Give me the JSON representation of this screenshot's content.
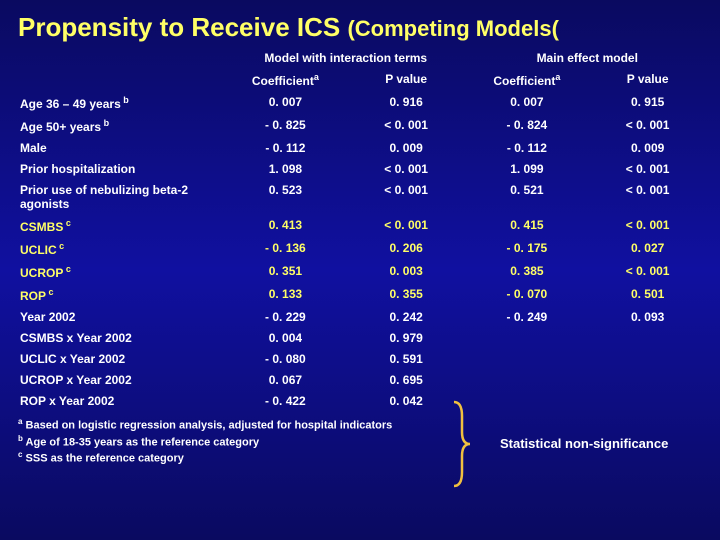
{
  "title_main": "Propensity to Receive ICS",
  "title_sub": "(Competing Models(",
  "header_group1": "Model with interaction terms",
  "header_group2": "Main effect model",
  "header_coef": "Coefficient",
  "header_sup_a": "a",
  "header_pval": "P value",
  "rows": [
    {
      "label": "Age 36 – 49 years",
      "sup": "b",
      "c1": "0. 007",
      "p1": "0. 916",
      "c2": "0. 007",
      "p2": "0. 915"
    },
    {
      "label": "Age 50+ years",
      "sup": "b",
      "c1": "- 0. 825",
      "p1": "< 0. 001",
      "c2": "- 0. 824",
      "p2": "< 0. 001"
    },
    {
      "label": "Male",
      "sup": "",
      "c1": "- 0. 112",
      "p1": "0. 009",
      "c2": "- 0. 112",
      "p2": "0. 009"
    },
    {
      "label": "Prior hospitalization",
      "sup": "",
      "c1": "1. 098",
      "p1": "< 0. 001",
      "c2": "1. 099",
      "p2": "< 0. 001"
    },
    {
      "label": "Prior use of nebulizing beta-2 agonists",
      "sup": "",
      "c1": "0. 523",
      "p1": "< 0. 001",
      "c2": "0. 521",
      "p2": "< 0. 001"
    },
    {
      "label": "CSMBS",
      "sup": "c",
      "c1": "0. 413",
      "p1": "< 0. 001",
      "c2": "0. 415",
      "p2": "< 0. 001",
      "hl": true
    },
    {
      "label": "UCLIC",
      "sup": "c",
      "c1": "- 0. 136",
      "p1": "0. 206",
      "c2": "- 0. 175",
      "p2": "0. 027",
      "hl": true
    },
    {
      "label": "UCROP",
      "sup": "c",
      "c1": "0. 351",
      "p1": "0. 003",
      "c2": "0. 385",
      "p2": "< 0. 001",
      "hl": true
    },
    {
      "label": "ROP",
      "sup": "c",
      "c1": "0. 133",
      "p1": "0. 355",
      "c2": "- 0. 070",
      "p2": "0. 501",
      "hl": true
    },
    {
      "label": "Year 2002",
      "sup": "",
      "c1": "- 0. 229",
      "p1": "0. 242",
      "c2": "- 0. 249",
      "p2": "0. 093"
    },
    {
      "label": "CSMBS x Year 2002",
      "sup": "",
      "c1": "0. 004",
      "p1": "0. 979",
      "c2": "",
      "p2": ""
    },
    {
      "label": "UCLIC x Year 2002",
      "sup": "",
      "c1": "- 0. 080",
      "p1": "0. 591",
      "c2": "",
      "p2": ""
    },
    {
      "label": "UCROP x Year 2002",
      "sup": "",
      "c1": "0. 067",
      "p1": "0. 695",
      "c2": "",
      "p2": ""
    },
    {
      "label": "ROP x Year 2002",
      "sup": "",
      "c1": "- 0. 422",
      "p1": "0. 042",
      "c2": "",
      "p2": ""
    }
  ],
  "annotation": "Statistical non-significance",
  "footnote_a": "Based on logistic regression analysis, adjusted for hospital indicators",
  "footnote_b": "Age of 18-35 years as the reference category",
  "footnote_c": "SSS as the reference category",
  "sup_a": "a",
  "sup_b": "b",
  "sup_c": "c",
  "brace_color": "#f0c040"
}
